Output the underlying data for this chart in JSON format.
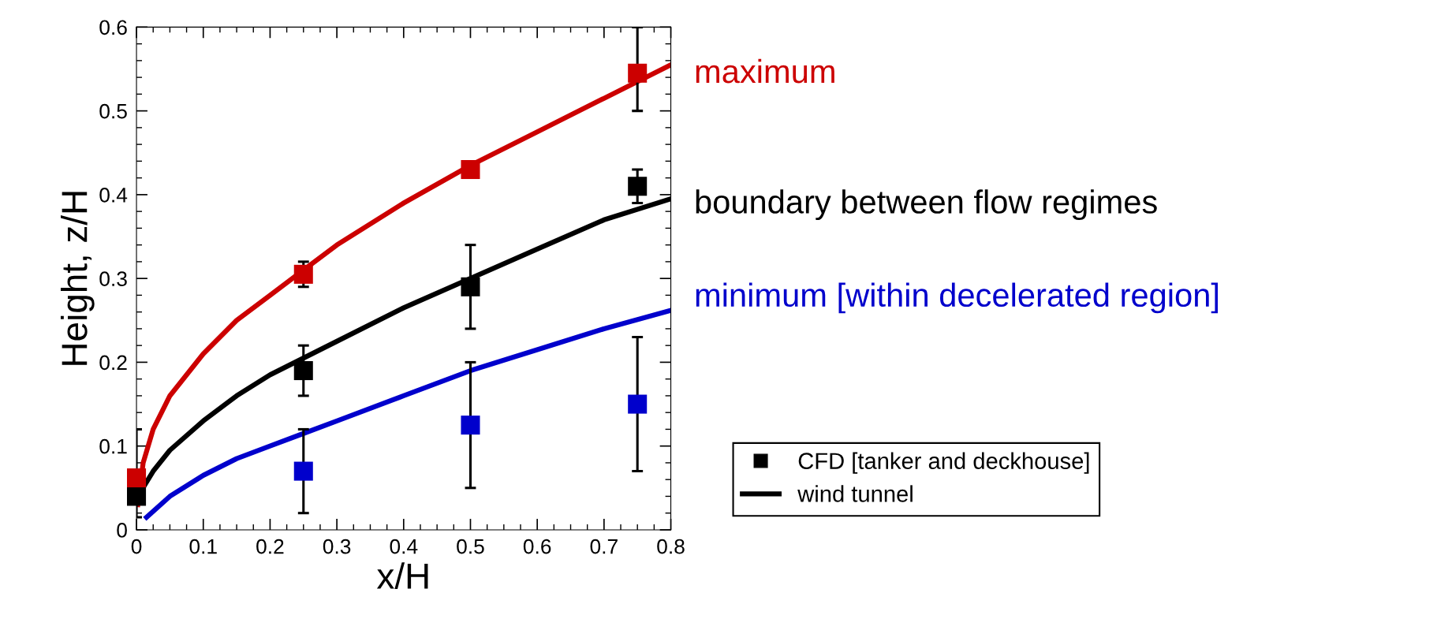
{
  "chart_data": {
    "type": "line",
    "xlabel": "x/H",
    "ylabel": "Height, z/H",
    "xlim": [
      0,
      0.8
    ],
    "ylim": [
      0,
      0.6
    ],
    "xticks": [
      0,
      0.1,
      0.2,
      0.3,
      0.4,
      0.5,
      0.6,
      0.7,
      0.8
    ],
    "yticks": [
      0,
      0.1,
      0.2,
      0.3,
      0.4,
      0.5,
      0.6
    ],
    "grid": false,
    "legend": "right",
    "series": [
      {
        "color": "#cc0000",
        "x": [
          0.002,
          0.01,
          0.025,
          0.05,
          0.1,
          0.15,
          0.2,
          0.25,
          0.3,
          0.4,
          0.5,
          0.6,
          0.7,
          0.8
        ],
        "values": [
          0.03,
          0.08,
          0.12,
          0.16,
          0.21,
          0.25,
          0.28,
          0.31,
          0.34,
          0.39,
          0.435,
          0.475,
          0.515,
          0.555
        ]
      },
      {
        "type": "scatter",
        "marker": "square",
        "name": "CFD [tanker and deckhouse]",
        "color": "#000000",
        "x": [
          0,
          0.25,
          0.5,
          0.75
        ],
        "values": [
          0.04,
          0.19,
          0.29,
          0.41
        ],
        "errors": [
          [
            0.015,
            0.12
          ],
          [
            0.16,
            0.22
          ],
          [
            0.24,
            0.34
          ],
          [
            0.39,
            0.43
          ]
        ]
      },
      {
        "name": "wind tunnel",
        "color": "#000000",
        "x": [
          0.002,
          0.025,
          0.05,
          0.1,
          0.15,
          0.2,
          0.25,
          0.3,
          0.4,
          0.5,
          0.6,
          0.7,
          0.8
        ],
        "values": [
          0.04,
          0.07,
          0.095,
          0.13,
          0.16,
          0.185,
          0.205,
          0.225,
          0.265,
          0.3,
          0.335,
          0.37,
          0.395
        ]
      },
      {
        "color": "#0000cc",
        "x": [
          0.015,
          0.05,
          0.1,
          0.15,
          0.2,
          0.25,
          0.3,
          0.4,
          0.5,
          0.6,
          0.7,
          0.8
        ],
        "values": [
          0.015,
          0.04,
          0.065,
          0.085,
          0.1,
          0.115,
          0.13,
          0.16,
          0.19,
          0.215,
          0.24,
          0.262
        ]
      },
      {
        "type": "scatter",
        "marker": "square",
        "color": "#cc0000",
        "x": [
          0,
          0.25,
          0.5,
          0.75
        ],
        "values": [
          0.062,
          0.305,
          0.43,
          0.545
        ],
        "errors": [
          null,
          [
            0.29,
            0.32
          ],
          null,
          [
            0.5,
            0.6
          ]
        ]
      },
      {
        "type": "scatter",
        "marker": "square",
        "color": "#0000cc",
        "x": [
          0.25,
          0.5,
          0.75
        ],
        "values": [
          0.07,
          0.125,
          0.15
        ],
        "errors": [
          [
            0.02,
            0.12
          ],
          [
            0.05,
            0.2
          ],
          [
            0.07,
            0.23
          ]
        ]
      }
    ],
    "annotations": [
      "maximum",
      "boundary between flow regimes",
      "minimum [within decelerated region]"
    ]
  }
}
